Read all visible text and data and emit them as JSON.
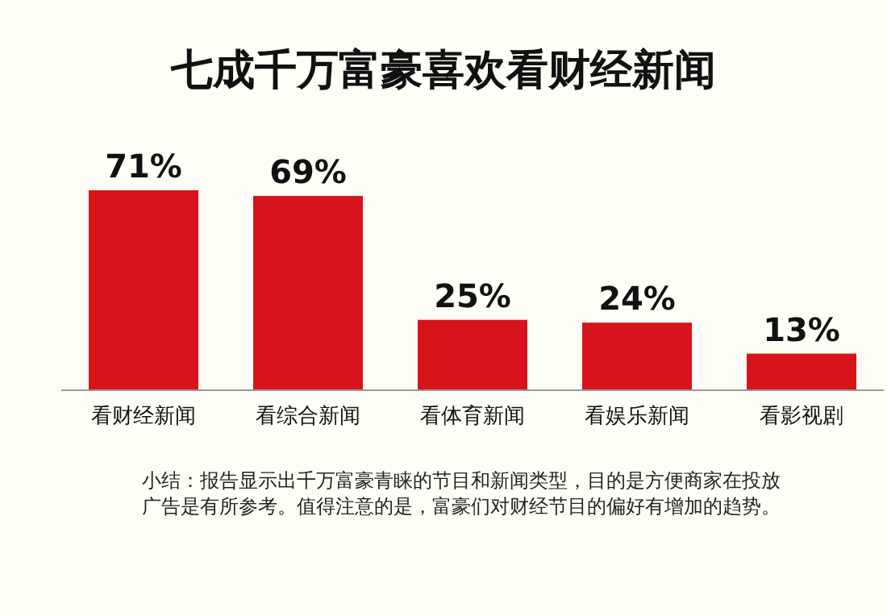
{
  "chart_data": {
    "type": "bar",
    "title": "七成千万富豪喜欢看财经新闻",
    "categories": [
      "看财经新闻",
      "看综合新闻",
      "看体育新闻",
      "看娱乐新闻",
      "看影视剧"
    ],
    "values": [
      71,
      69,
      25,
      24,
      13
    ],
    "value_labels": [
      "71%",
      "69%",
      "25%",
      "24%",
      "13%"
    ],
    "color": "#d7141c",
    "annotations": [
      "小结：报告显示出千万富豪青睐的节目和新闻类型，目的是方便商家在投放广告是有所参考。值得注意的是，富豪们对财经节目的偏好有增加的趋势。"
    ]
  }
}
